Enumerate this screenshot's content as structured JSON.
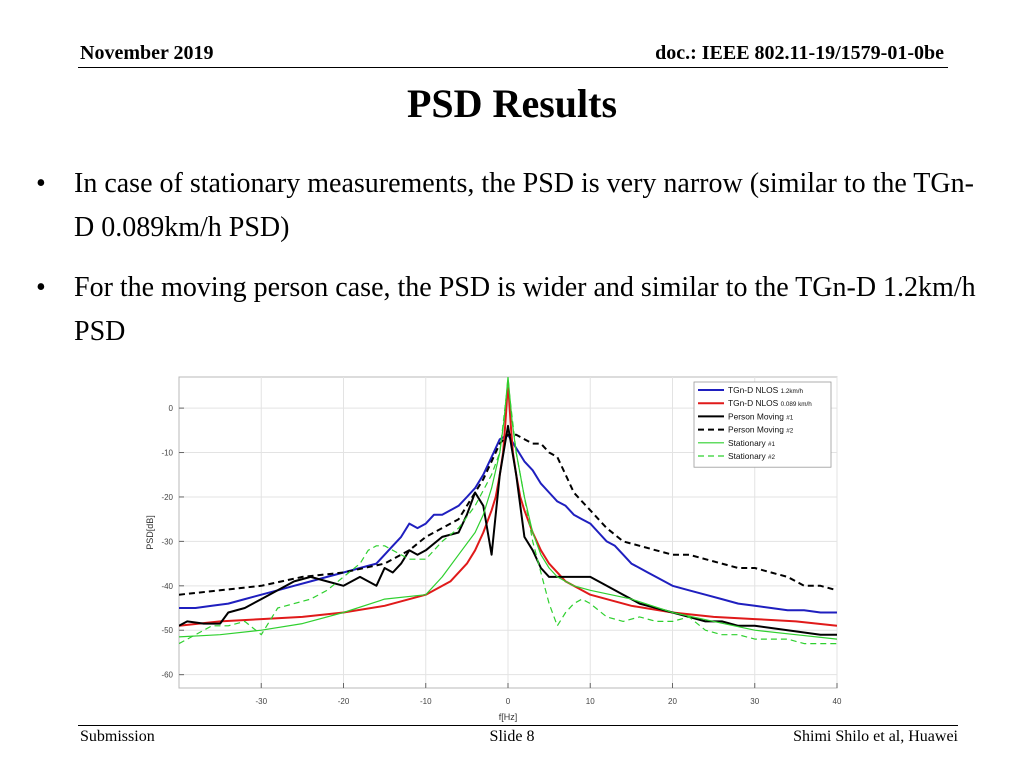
{
  "header": {
    "date": "November 2019",
    "doc": "doc.: IEEE 802.11-19/1579-01-0be"
  },
  "title": "PSD Results",
  "bullets": [
    "In case of stationary measurements, the PSD is very narrow (similar to the TGn-D 0.089km/h PSD)",
    "For the moving person case, the PSD is wider and similar to the TGn-D 1.2km/h PSD"
  ],
  "footer": {
    "left": "Submission",
    "center": "Slide 8",
    "right": "Shimi Shilo et al, Huawei"
  },
  "chart_data": {
    "type": "line",
    "xlabel": "f[Hz]",
    "ylabel": "PSD[dB]",
    "xlim": [
      -40,
      40
    ],
    "ylim": [
      -63,
      7
    ],
    "xticks": [
      -30,
      -20,
      -10,
      0,
      10,
      20,
      30,
      40
    ],
    "yticks": [
      0,
      -10,
      -20,
      -30,
      -40,
      -50,
      -60
    ],
    "grid": true,
    "legend_position": "top-right",
    "series": [
      {
        "name": "TGn-D NLOS",
        "name_sub": "1.2km/h",
        "color": "#1f1fbf",
        "dash": "solid",
        "x": [
          -40,
          -38,
          -36,
          -34,
          -32,
          -30,
          -28,
          -26,
          -24,
          -22,
          -20,
          -18,
          -16,
          -14,
          -13,
          -12,
          -11,
          -10,
          -9,
          -8,
          -7,
          -6,
          -5,
          -4,
          -3,
          -2,
          -1,
          0,
          1,
          2,
          3,
          4,
          5,
          6,
          7,
          8,
          9,
          10,
          11,
          12,
          13,
          14,
          15,
          16,
          17,
          18,
          20,
          22,
          24,
          26,
          28,
          30,
          32,
          34,
          36,
          38,
          40
        ],
        "y": [
          -45,
          -45,
          -44.5,
          -44,
          -43,
          -42,
          -41,
          -40,
          -39,
          -38,
          -37,
          -36,
          -35,
          -31,
          -29,
          -26,
          -27,
          -26,
          -24,
          -24,
          -23,
          -22,
          -20,
          -18,
          -15,
          -11,
          -7,
          -6,
          -9,
          -12,
          -14,
          -17,
          -19,
          -21,
          -22,
          -24,
          -25,
          -26,
          -28,
          -30,
          -31,
          -33,
          -35,
          -36,
          -37,
          -38,
          -40,
          -41,
          -42,
          -43,
          -44,
          -44.5,
          -45,
          -45.5,
          -45.5,
          -46,
          -46
        ]
      },
      {
        "name": "TGn-D NLOS",
        "name_sub": "0.089 km/h",
        "color": "#e01a1a",
        "dash": "solid",
        "x": [
          -40,
          -35,
          -30,
          -25,
          -20,
          -15,
          -10,
          -7,
          -5,
          -4,
          -3,
          -2,
          -1.5,
          -1,
          -0.6,
          -0.3,
          0,
          0.3,
          0.6,
          1,
          1.5,
          2,
          3,
          4,
          5,
          7,
          10,
          15,
          20,
          25,
          30,
          35,
          40
        ],
        "y": [
          -49,
          -48,
          -47.5,
          -47,
          -46,
          -44.5,
          -42,
          -39,
          -35,
          -32,
          -28,
          -23,
          -20,
          -15,
          -10,
          -3,
          6,
          -3,
          -10,
          -15,
          -20,
          -23,
          -28,
          -32,
          -35,
          -39,
          -42,
          -44.5,
          -46,
          -47,
          -47.5,
          -48,
          -49
        ]
      },
      {
        "name": "Person Moving",
        "name_sub": "#1",
        "color": "#000000",
        "dash": "solid",
        "x": [
          -40,
          -39,
          -37,
          -35,
          -34,
          -32,
          -30,
          -28,
          -26,
          -24,
          -22,
          -20,
          -18,
          -16,
          -15,
          -14,
          -13,
          -12,
          -11,
          -10,
          -8,
          -6,
          -5,
          -4,
          -3,
          -2,
          -1,
          0,
          1,
          2,
          3,
          4,
          5,
          6,
          8,
          10,
          12,
          14,
          16,
          18,
          20,
          22,
          24,
          26,
          28,
          30,
          32,
          34,
          36,
          38,
          40
        ],
        "y": [
          -49,
          -48,
          -48.5,
          -48.5,
          -46,
          -45,
          -43,
          -41,
          -39,
          -38,
          -39,
          -40,
          -38,
          -40,
          -36,
          -37,
          -35,
          -32,
          -33,
          -32,
          -29,
          -28,
          -24,
          -19,
          -22,
          -33,
          -15,
          -4,
          -15,
          -29,
          -32,
          -36,
          -38,
          -38,
          -38,
          -38,
          -40,
          -42,
          -44,
          -45,
          -46,
          -47,
          -48,
          -48,
          -49,
          -49,
          -49.5,
          -50,
          -50.5,
          -51,
          -51
        ]
      },
      {
        "name": "Person Moving",
        "name_sub": "#2",
        "color": "#000000",
        "dash": "6,4",
        "x": [
          -40,
          -35,
          -30,
          -25,
          -20,
          -15,
          -12,
          -10,
          -8,
          -6,
          -4,
          -3,
          -2,
          -1,
          0,
          1,
          2,
          3,
          4,
          5,
          6,
          7,
          8,
          9,
          10,
          12,
          14,
          16,
          18,
          20,
          22,
          24,
          26,
          28,
          30,
          32,
          34,
          36,
          38,
          40
        ],
        "y": [
          -42,
          -41,
          -40,
          -38,
          -37,
          -35,
          -32,
          -29,
          -27,
          -25,
          -19,
          -16,
          -12,
          -8,
          -6,
          -6,
          -7,
          -8,
          -8,
          -10,
          -11,
          -15,
          -19,
          -21,
          -23,
          -27,
          -30,
          -31,
          -32,
          -33,
          -33,
          -34,
          -35,
          -36,
          -36,
          -37,
          -38,
          -40,
          -40,
          -41
        ]
      },
      {
        "name": "Stationary",
        "name_sub": "#1",
        "color": "#2fd02f",
        "dash": "solid",
        "x": [
          -40,
          -35,
          -30,
          -25,
          -20,
          -15,
          -10,
          -8,
          -6,
          -4,
          -3,
          -2,
          -1,
          -0.5,
          0,
          0.5,
          1,
          2,
          3,
          4,
          5,
          6,
          8,
          10,
          15,
          20,
          25,
          30,
          35,
          40
        ],
        "y": [
          -51.5,
          -51,
          -50,
          -48.5,
          -46,
          -43,
          -42,
          -38,
          -33,
          -28,
          -24,
          -18,
          -10,
          -3,
          7,
          -3,
          -10,
          -20,
          -28,
          -33,
          -36,
          -38,
          -40,
          -41,
          -43,
          -46,
          -48,
          -50,
          -51,
          -52
        ]
      },
      {
        "name": "Stationary",
        "name_sub": "#2",
        "color": "#2fd02f",
        "dash": "6,4",
        "x": [
          -40,
          -38,
          -36,
          -34,
          -32,
          -30,
          -28,
          -26,
          -24,
          -22,
          -20,
          -18,
          -17,
          -16,
          -15,
          -14,
          -12,
          -10,
          -8,
          -6,
          -4,
          -2,
          -1,
          0,
          1,
          2,
          3,
          4,
          5,
          6,
          7,
          8,
          9,
          10,
          12,
          14,
          16,
          18,
          20,
          22,
          24,
          26,
          28,
          30,
          32,
          34,
          36,
          38,
          40
        ],
        "y": [
          -53,
          -51,
          -49,
          -49,
          -48,
          -51,
          -45,
          -44,
          -43,
          -41,
          -38,
          -35,
          -32,
          -31,
          -31,
          -32,
          -34,
          -34,
          -30,
          -27,
          -22,
          -15,
          -10,
          6,
          -10,
          -20,
          -30,
          -37,
          -44,
          -49,
          -46,
          -44,
          -43,
          -44,
          -47,
          -48,
          -47,
          -48,
          -48,
          -47,
          -50,
          -51,
          -51,
          -52,
          -52,
          -52,
          -53,
          -53,
          -53
        ]
      }
    ]
  }
}
